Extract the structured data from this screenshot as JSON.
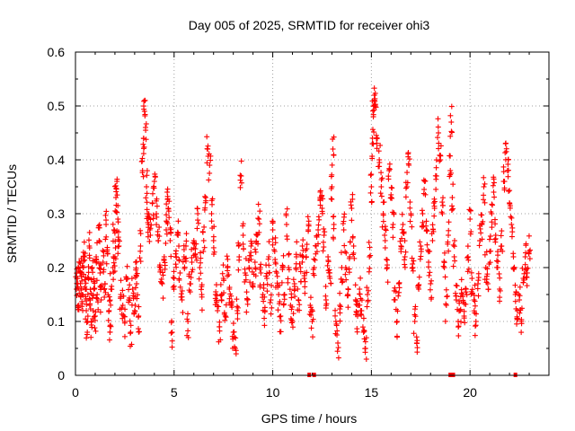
{
  "chart_data": {
    "type": "scatter",
    "title": "Day 005 of 2025, SRMTID for receiver ohi3",
    "xlabel": "GPS time / hours",
    "ylabel": "SRMTID / TECUs",
    "xlim": [
      0,
      24
    ],
    "ylim": [
      0,
      0.6
    ],
    "xticks": [
      0,
      5,
      10,
      15,
      20
    ],
    "yticks": [
      0,
      0.1,
      0.2,
      0.3,
      0.4,
      0.5,
      0.6
    ],
    "xtick_labels": [
      "0",
      "5",
      "10",
      "15",
      "20"
    ],
    "ytick_labels": [
      "0",
      "0.1",
      "0.2",
      "0.3",
      "0.4",
      "0.5",
      "0.6"
    ],
    "grid": true,
    "marker": "+",
    "color": "#ff0000",
    "series": [
      {
        "name": "SRMTID",
        "points": [
          [
            0.05,
            0.16
          ],
          [
            0.1,
            0.18
          ],
          [
            0.15,
            0.13
          ],
          [
            0.2,
            0.21
          ],
          [
            0.25,
            0.17
          ],
          [
            0.3,
            0.19
          ],
          [
            0.35,
            0.15
          ],
          [
            0.4,
            0.2
          ],
          [
            0.45,
            0.22
          ],
          [
            0.5,
            0.16
          ],
          [
            0.55,
            0.12
          ],
          [
            0.6,
            0.08
          ],
          [
            0.65,
            0.18
          ],
          [
            0.7,
            0.24
          ],
          [
            0.75,
            0.14
          ],
          [
            0.8,
            0.1
          ],
          [
            0.85,
            0.2
          ],
          [
            0.9,
            0.12
          ],
          [
            0.95,
            0.16
          ],
          [
            1.0,
            0.11
          ],
          [
            1.05,
            0.22
          ],
          [
            1.1,
            0.15
          ],
          [
            1.2,
            0.25
          ],
          [
            1.25,
            0.19
          ],
          [
            1.3,
            0.14
          ],
          [
            1.4,
            0.21
          ],
          [
            1.5,
            0.17
          ],
          [
            1.55,
            0.28
          ],
          [
            1.6,
            0.23
          ],
          [
            1.7,
            0.12
          ],
          [
            1.75,
            0.08
          ],
          [
            1.8,
            0.16
          ],
          [
            1.9,
            0.2
          ],
          [
            1.95,
            0.27
          ],
          [
            2.0,
            0.22
          ],
          [
            2.05,
            0.33
          ],
          [
            2.1,
            0.36
          ],
          [
            2.15,
            0.29
          ],
          [
            2.2,
            0.24
          ],
          [
            2.3,
            0.15
          ],
          [
            2.4,
            0.13
          ],
          [
            2.5,
            0.1
          ],
          [
            2.6,
            0.18
          ],
          [
            2.7,
            0.14
          ],
          [
            2.8,
            0.08
          ],
          [
            2.9,
            0.16
          ],
          [
            3.0,
            0.12
          ],
          [
            3.05,
            0.21
          ],
          [
            3.1,
            0.17
          ],
          [
            3.2,
            0.11
          ],
          [
            3.3,
            0.24
          ],
          [
            3.4,
            0.38
          ],
          [
            3.45,
            0.44
          ],
          [
            3.5,
            0.49
          ],
          [
            3.55,
            0.46
          ],
          [
            3.6,
            0.35
          ],
          [
            3.65,
            0.3
          ],
          [
            3.7,
            0.28
          ],
          [
            3.8,
            0.26
          ],
          [
            3.9,
            0.32
          ],
          [
            4.0,
            0.36
          ],
          [
            4.1,
            0.3
          ],
          [
            4.2,
            0.25
          ],
          [
            4.3,
            0.2
          ],
          [
            4.4,
            0.17
          ],
          [
            4.5,
            0.22
          ],
          [
            4.6,
            0.27
          ],
          [
            4.65,
            0.34
          ],
          [
            4.7,
            0.31
          ],
          [
            4.8,
            0.25
          ],
          [
            4.9,
            0.08
          ],
          [
            5.0,
            0.18
          ],
          [
            5.1,
            0.22
          ],
          [
            5.2,
            0.26
          ],
          [
            5.3,
            0.19
          ],
          [
            5.4,
            0.14
          ],
          [
            5.5,
            0.22
          ],
          [
            5.6,
            0.24
          ],
          [
            5.7,
            0.1
          ],
          [
            5.8,
            0.17
          ],
          [
            5.9,
            0.21
          ],
          [
            6.0,
            0.25
          ],
          [
            6.1,
            0.22
          ],
          [
            6.2,
            0.3
          ],
          [
            6.3,
            0.2
          ],
          [
            6.4,
            0.15
          ],
          [
            6.5,
            0.25
          ],
          [
            6.6,
            0.33
          ],
          [
            6.7,
            0.42
          ],
          [
            6.8,
            0.39
          ],
          [
            6.9,
            0.3
          ],
          [
            7.0,
            0.25
          ],
          [
            7.1,
            0.15
          ],
          [
            7.2,
            0.12
          ],
          [
            7.3,
            0.09
          ],
          [
            7.4,
            0.14
          ],
          [
            7.5,
            0.18
          ],
          [
            7.6,
            0.11
          ],
          [
            7.7,
            0.2
          ],
          [
            7.8,
            0.16
          ],
          [
            7.9,
            0.13
          ],
          [
            8.0,
            0.08
          ],
          [
            8.1,
            0.05
          ],
          [
            8.2,
            0.12
          ],
          [
            8.3,
            0.22
          ],
          [
            8.4,
            0.37
          ],
          [
            8.5,
            0.26
          ],
          [
            8.6,
            0.19
          ],
          [
            8.7,
            0.14
          ],
          [
            8.8,
            0.2
          ],
          [
            8.9,
            0.24
          ],
          [
            9.0,
            0.17
          ],
          [
            9.1,
            0.21
          ],
          [
            9.2,
            0.26
          ],
          [
            9.3,
            0.29
          ],
          [
            9.4,
            0.19
          ],
          [
            9.5,
            0.15
          ],
          [
            9.6,
            0.12
          ],
          [
            9.7,
            0.18
          ],
          [
            9.8,
            0.22
          ],
          [
            9.9,
            0.14
          ],
          [
            10.0,
            0.27
          ],
          [
            10.1,
            0.23
          ],
          [
            10.2,
            0.19
          ],
          [
            10.3,
            0.15
          ],
          [
            10.4,
            0.11
          ],
          [
            10.5,
            0.2
          ],
          [
            10.6,
            0.15
          ],
          [
            10.7,
            0.28
          ],
          [
            10.8,
            0.2
          ],
          [
            10.9,
            0.13
          ],
          [
            11.0,
            0.1
          ],
          [
            11.1,
            0.17
          ],
          [
            11.2,
            0.22
          ],
          [
            11.3,
            0.14
          ],
          [
            11.4,
            0.2
          ],
          [
            11.5,
            0.24
          ],
          [
            11.6,
            0.18
          ],
          [
            11.7,
            0.22
          ],
          [
            11.8,
            0.27
          ],
          [
            11.9,
            0.13
          ],
          [
            12.0,
            0.1
          ],
          [
            12.1,
            0.2
          ],
          [
            12.2,
            0.24
          ],
          [
            12.3,
            0.27
          ],
          [
            12.4,
            0.33
          ],
          [
            12.5,
            0.31
          ],
          [
            12.6,
            0.26
          ],
          [
            12.7,
            0.14
          ],
          [
            12.8,
            0.22
          ],
          [
            12.9,
            0.18
          ],
          [
            13.0,
            0.35
          ],
          [
            13.05,
            0.42
          ],
          [
            13.1,
            0.28
          ],
          [
            13.2,
            0.1
          ],
          [
            13.3,
            0.06
          ],
          [
            13.4,
            0.13
          ],
          [
            13.5,
            0.2
          ],
          [
            13.6,
            0.27
          ],
          [
            13.7,
            0.2
          ],
          [
            13.8,
            0.15
          ],
          [
            13.9,
            0.22
          ],
          [
            14.0,
            0.31
          ],
          [
            14.1,
            0.24
          ],
          [
            14.2,
            0.14
          ],
          [
            14.3,
            0.11
          ],
          [
            14.4,
            0.16
          ],
          [
            14.5,
            0.12
          ],
          [
            14.6,
            0.08
          ],
          [
            14.7,
            0.05
          ],
          [
            14.8,
            0.15
          ],
          [
            14.9,
            0.22
          ],
          [
            15.0,
            0.35
          ],
          [
            15.05,
            0.43
          ],
          [
            15.1,
            0.48
          ],
          [
            15.15,
            0.52
          ],
          [
            15.2,
            0.5
          ],
          [
            15.3,
            0.44
          ],
          [
            15.4,
            0.4
          ],
          [
            15.5,
            0.35
          ],
          [
            15.6,
            0.3
          ],
          [
            15.7,
            0.25
          ],
          [
            15.8,
            0.2
          ],
          [
            15.9,
            0.38
          ],
          [
            16.0,
            0.33
          ],
          [
            16.1,
            0.28
          ],
          [
            16.2,
            0.14
          ],
          [
            16.3,
            0.1
          ],
          [
            16.4,
            0.17
          ],
          [
            16.5,
            0.24
          ],
          [
            16.6,
            0.28
          ],
          [
            16.7,
            0.22
          ],
          [
            16.8,
            0.35
          ],
          [
            16.9,
            0.39
          ],
          [
            17.0,
            0.3
          ],
          [
            17.1,
            0.2
          ],
          [
            17.2,
            0.1
          ],
          [
            17.3,
            0.06
          ],
          [
            17.4,
            0.16
          ],
          [
            17.5,
            0.24
          ],
          [
            17.6,
            0.3
          ],
          [
            17.7,
            0.36
          ],
          [
            17.8,
            0.27
          ],
          [
            17.9,
            0.21
          ],
          [
            18.0,
            0.17
          ],
          [
            18.1,
            0.25
          ],
          [
            18.2,
            0.31
          ],
          [
            18.3,
            0.37
          ],
          [
            18.4,
            0.45
          ],
          [
            18.5,
            0.4
          ],
          [
            18.6,
            0.3
          ],
          [
            18.7,
            0.2
          ],
          [
            18.8,
            0.13
          ],
          [
            18.9,
            0.26
          ],
          [
            19.0,
            0.38
          ],
          [
            19.05,
            0.47
          ],
          [
            19.1,
            0.33
          ],
          [
            19.2,
            0.22
          ],
          [
            19.3,
            0.14
          ],
          [
            19.4,
            0.1
          ],
          [
            19.5,
            0.12
          ],
          [
            19.6,
            0.15
          ],
          [
            19.7,
            0.11
          ],
          [
            19.8,
            0.16
          ],
          [
            19.9,
            0.22
          ],
          [
            20.0,
            0.29
          ],
          [
            20.1,
            0.18
          ],
          [
            20.2,
            0.14
          ],
          [
            20.3,
            0.1
          ],
          [
            20.4,
            0.17
          ],
          [
            20.5,
            0.25
          ],
          [
            20.6,
            0.28
          ],
          [
            20.7,
            0.35
          ],
          [
            20.8,
            0.2
          ],
          [
            20.9,
            0.17
          ],
          [
            21.0,
            0.23
          ],
          [
            21.1,
            0.3
          ],
          [
            21.2,
            0.34
          ],
          [
            21.3,
            0.26
          ],
          [
            21.4,
            0.2
          ],
          [
            21.5,
            0.16
          ],
          [
            21.6,
            0.24
          ],
          [
            21.7,
            0.36
          ],
          [
            21.8,
            0.43
          ],
          [
            21.9,
            0.38
          ],
          [
            22.0,
            0.32
          ],
          [
            22.1,
            0.28
          ],
          [
            22.2,
            0.22
          ],
          [
            22.3,
            0.15
          ],
          [
            22.4,
            0.12
          ],
          [
            22.5,
            0.14
          ],
          [
            22.6,
            0.1
          ],
          [
            22.7,
            0.18
          ],
          [
            22.8,
            0.22
          ],
          [
            22.9,
            0.19
          ],
          [
            23.0,
            0.23
          ]
        ]
      }
    ],
    "zero_markers_x": [
      11.85,
      12.1,
      19.0,
      19.15,
      22.3
    ]
  }
}
